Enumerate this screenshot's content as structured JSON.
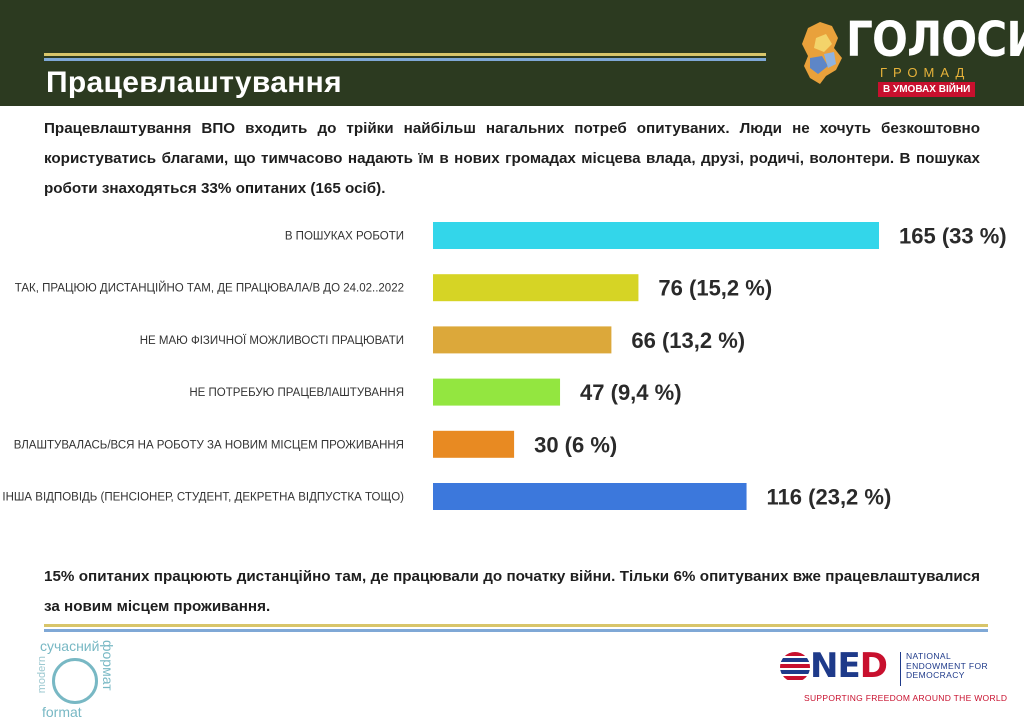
{
  "header": {
    "title": "Працевлаштування"
  },
  "logo": {
    "name": "ГОЛОСИ",
    "sub": "ГРОМАД",
    "badge": "В УМОВАХ ВІЙНИ"
  },
  "intro": "Працевлаштування ВПО входить до трійки найбільш нагальних потреб опитуваних. Люди не хочуть безкоштовно користуватись благами, що тимчасово надають їм в нових громадах місцева влада, друзі, родичі, волонтери.  В пошуках роботи знаходяться 33% опитаних (165 осіб).",
  "outro": "15% опитаних працюють дистанційно там, де працювали до початку війни. Тільки 6% опитуваних вже працевлаштувалися за новим місцем проживання.",
  "colors": {
    "header_bg": "#2c3a20",
    "accent_gold": "#d8c56a",
    "accent_blue": "#7fa8d6"
  },
  "chart_data": {
    "type": "bar",
    "orientation": "horizontal",
    "categories": [
      "В ПОШУКАХ РОБОТИ",
      "ТАК, ПРАЦЮЮ ДИСТАНЦІЙНО ТАМ, ДЕ ПРАЦЮВАЛА/В ДО 24.02..2022",
      "НЕ МАЮ ФІЗИЧНОЇ МОЖЛИВОСТІ ПРАЦЮВАТИ",
      "НЕ ПОТРЕБУЮ ПРАЦЕВЛАШТУВАННЯ",
      "ВЛАШТУВАЛАСЬ/ВСЯ НА РОБОТУ ЗА НОВИМ МІСЦЕМ ПРОЖИВАННЯ",
      "ІНША ВІДПОВІДЬ (ПЕНСІОНЕР, СТУДЕНТ, ДЕКРЕТНА ВІДПУСТКА ТОЩО)"
    ],
    "values": [
      165,
      76,
      66,
      47,
      30,
      116
    ],
    "percents": [
      33,
      15.2,
      13.2,
      9.4,
      6,
      23.2
    ],
    "data_labels": [
      "165  (33 %)",
      "76  (15,2 %)",
      "66  (13,2 %)",
      "47  (9,4 %)",
      "30  (6 %)",
      "116  (23,2 %)"
    ],
    "colors": [
      "#33d6ea",
      "#d6d425",
      "#dca83a",
      "#93e640",
      "#e88a22",
      "#3c78dc"
    ],
    "title": "",
    "xlabel": "",
    "ylabel": "",
    "xlim": [
      0,
      165
    ],
    "grid": false,
    "legend": "none"
  },
  "footer": {
    "left_logo_top": "сучасний",
    "left_logo_side": "формат",
    "left_logo_bottom": "format",
    "left_logo_side2": "modern",
    "ned_word_a": "NE",
    "ned_word_b": "D",
    "ned_full": "NATIONAL ENDOWMENT FOR DEMOCRACY",
    "ned_tag": "SUPPORTING FREEDOM AROUND THE WORLD"
  }
}
